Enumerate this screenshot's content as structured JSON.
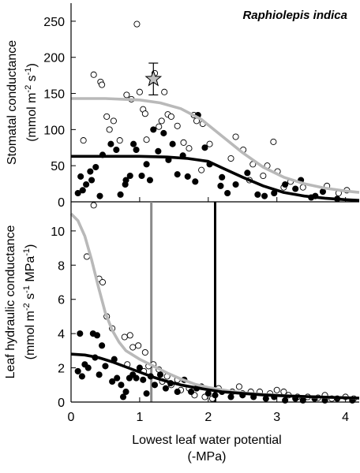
{
  "chart_data": [
    {
      "type": "scatter",
      "panel": "top",
      "species_label": "Raphiolepis indica",
      "ylabel_line1": "Stomatal conductance",
      "ylabel_line2": "(mmol m-2 s-1)",
      "ylabel_parts": [
        "(mmol m",
        "-2",
        " s",
        "-1",
        ")"
      ],
      "xlim": [
        0,
        4.2
      ],
      "ylim": [
        0,
        275
      ],
      "y_ticks": [
        0,
        50,
        100,
        150,
        200,
        250
      ],
      "grid": false,
      "series": [
        {
          "marker": "open-circle",
          "color": "#000000",
          "points": [
            [
              0.18,
              85
            ],
            [
              0.33,
              176
            ],
            [
              0.43,
              166
            ],
            [
              0.45,
              162
            ],
            [
              0.52,
              118
            ],
            [
              0.56,
              100
            ],
            [
              0.62,
              112
            ],
            [
              0.71,
              85
            ],
            [
              0.81,
              148
            ],
            [
              0.88,
              142
            ],
            [
              0.96,
              246
            ],
            [
              1.0,
              152
            ],
            [
              1.05,
              128
            ],
            [
              1.08,
              122
            ],
            [
              1.1,
              86
            ],
            [
              1.22,
              178
            ],
            [
              1.28,
              104
            ],
            [
              1.32,
              112
            ],
            [
              1.36,
              152
            ],
            [
              1.41,
              121
            ],
            [
              1.46,
              118
            ],
            [
              1.55,
              105
            ],
            [
              1.64,
              82
            ],
            [
              1.72,
              74
            ],
            [
              1.79,
              120
            ],
            [
              1.83,
              112
            ],
            [
              1.92,
              108
            ],
            [
              2.02,
              80
            ],
            [
              2.33,
              60
            ],
            [
              2.4,
              90
            ],
            [
              2.51,
              72
            ],
            [
              2.65,
              52
            ],
            [
              2.8,
              36
            ],
            [
              2.86,
              50
            ],
            [
              2.95,
              83
            ],
            [
              3.01,
              42
            ],
            [
              3.1,
              20
            ],
            [
              3.2,
              28
            ],
            [
              3.38,
              20
            ],
            [
              3.73,
              22
            ],
            [
              3.9,
              12
            ],
            [
              4.02,
              16
            ],
            [
              1.9,
              44
            ],
            [
              2.6,
              30
            ]
          ]
        },
        {
          "marker": "filled-circle",
          "color": "#000000",
          "points": [
            [
              0.1,
              12
            ],
            [
              0.14,
              35
            ],
            [
              0.17,
              16
            ],
            [
              0.22,
              24
            ],
            [
              0.28,
              42
            ],
            [
              0.3,
              30
            ],
            [
              0.36,
              48
            ],
            [
              0.42,
              8
            ],
            [
              0.46,
              65
            ],
            [
              0.58,
              80
            ],
            [
              0.66,
              72
            ],
            [
              0.72,
              10
            ],
            [
              0.79,
              24
            ],
            [
              0.8,
              30
            ],
            [
              0.86,
              36
            ],
            [
              0.91,
              80
            ],
            [
              0.95,
              72
            ],
            [
              1.03,
              36
            ],
            [
              1.1,
              52
            ],
            [
              1.15,
              30
            ],
            [
              1.27,
              70
            ],
            [
              1.35,
              95
            ],
            [
              1.42,
              58
            ],
            [
              1.48,
              80
            ],
            [
              1.55,
              38
            ],
            [
              1.63,
              64
            ],
            [
              1.7,
              35
            ],
            [
              1.81,
              28
            ],
            [
              1.85,
              120
            ],
            [
              1.95,
              75
            ],
            [
              2.02,
              52
            ],
            [
              2.18,
              22
            ],
            [
              2.28,
              12
            ],
            [
              2.4,
              24
            ],
            [
              2.57,
              40
            ],
            [
              2.72,
              10
            ],
            [
              2.82,
              8
            ],
            [
              2.96,
              12
            ],
            [
              3.12,
              24
            ],
            [
              3.27,
              18
            ],
            [
              3.35,
              30
            ],
            [
              3.5,
              6
            ],
            [
              3.56,
              8
            ],
            [
              3.67,
              14
            ],
            [
              3.88,
              4
            ],
            [
              2.2,
              34
            ],
            [
              1.2,
              100
            ]
          ]
        }
      ],
      "reference_point": {
        "marker": "star",
        "x": 1.2,
        "y": 170,
        "error": 22,
        "fill": "#bfbfbf"
      },
      "curves": [
        {
          "color": "#b9b9b9",
          "points": [
            [
              0,
              143
            ],
            [
              0.5,
              143
            ],
            [
              1,
              141
            ],
            [
              1.3,
              137
            ],
            [
              1.6,
              129
            ],
            [
              1.9,
              114
            ],
            [
              2.2,
              91
            ],
            [
              2.5,
              68
            ],
            [
              2.8,
              48
            ],
            [
              3.1,
              34
            ],
            [
              3.4,
              25
            ],
            [
              3.7,
              19
            ],
            [
              4,
              15
            ],
            [
              4.2,
              13
            ]
          ]
        },
        {
          "color": "#000000",
          "points": [
            [
              0,
              63
            ],
            [
              0.5,
              63
            ],
            [
              1,
              63
            ],
            [
              1.4,
              62
            ],
            [
              1.7,
              60
            ],
            [
              2,
              56
            ],
            [
              2.2,
              47
            ],
            [
              2.5,
              34
            ],
            [
              2.8,
              22
            ],
            [
              3.1,
              13
            ],
            [
              3.4,
              8
            ],
            [
              3.7,
              5
            ],
            [
              4,
              3
            ],
            [
              4.2,
              2
            ]
          ]
        }
      ]
    },
    {
      "type": "scatter",
      "panel": "bottom",
      "ylabel_line1": "Leaf hydraulic conductance",
      "ylabel_parts": [
        "(mmol m",
        "-2",
        " s",
        "-1",
        " MPa",
        "-1",
        ")"
      ],
      "xlabel_line1": "Lowest leaf water potential",
      "xlabel_line2": "(-MPa)",
      "xlim": [
        0,
        4.2
      ],
      "ylim": [
        0,
        11.7
      ],
      "x_ticks": [
        0,
        1,
        2,
        3,
        4
      ],
      "y_ticks": [
        0,
        2,
        4,
        6,
        8,
        10
      ],
      "grid": false,
      "vertical_lines": [
        {
          "x": 1.17,
          "color": "#8a8a8a"
        },
        {
          "x": 2.1,
          "color": "#000000"
        }
      ],
      "series": [
        {
          "marker": "open-circle",
          "color": "#000000",
          "points": [
            [
              0.23,
              8.5
            ],
            [
              0.33,
              11.5
            ],
            [
              0.41,
              7.2
            ],
            [
              0.46,
              7.0
            ],
            [
              0.52,
              5.0
            ],
            [
              0.6,
              4.3
            ],
            [
              0.78,
              3.8
            ],
            [
              0.82,
              2.2
            ],
            [
              0.86,
              3.9
            ],
            [
              0.9,
              3.2
            ],
            [
              0.98,
              3.3
            ],
            [
              1.06,
              1.8
            ],
            [
              1.08,
              2.9
            ],
            [
              1.13,
              2.1
            ],
            [
              1.2,
              2.2
            ],
            [
              1.28,
              1.9
            ],
            [
              1.33,
              1.2
            ],
            [
              1.4,
              1.5
            ],
            [
              1.46,
              1.0
            ],
            [
              1.55,
              1.3
            ],
            [
              1.6,
              0.7
            ],
            [
              1.72,
              0.8
            ],
            [
              1.8,
              0.4
            ],
            [
              1.95,
              0.3
            ],
            [
              2.06,
              0.2
            ],
            [
              2.15,
              0.8
            ],
            [
              2.35,
              0.6
            ],
            [
              2.5,
              0.5
            ],
            [
              2.62,
              0.6
            ],
            [
              2.75,
              0.6
            ],
            [
              2.9,
              0.5
            ],
            [
              3.0,
              0.7
            ],
            [
              3.1,
              0.6
            ],
            [
              3.17,
              0.4
            ],
            [
              3.3,
              0.3
            ],
            [
              3.45,
              0.3
            ],
            [
              3.6,
              0.25
            ],
            [
              3.7,
              0.4
            ],
            [
              3.8,
              0.2
            ],
            [
              4.0,
              0.3
            ],
            [
              4.12,
              0.2
            ],
            [
              2.45,
              0.9
            ]
          ]
        },
        {
          "marker": "filled-circle",
          "color": "#000000",
          "points": [
            [
              0.1,
              1.8
            ],
            [
              0.13,
              4.0
            ],
            [
              0.16,
              1.5
            ],
            [
              0.2,
              2.2
            ],
            [
              0.25,
              2.0
            ],
            [
              0.32,
              4.0
            ],
            [
              0.35,
              2.6
            ],
            [
              0.38,
              3.9
            ],
            [
              0.41,
              1.6
            ],
            [
              0.45,
              3.3
            ],
            [
              0.5,
              2.1
            ],
            [
              0.6,
              1.2
            ],
            [
              0.63,
              2.5
            ],
            [
              0.67,
              1.4
            ],
            [
              0.73,
              1.0
            ],
            [
              0.76,
              0.3
            ],
            [
              0.8,
              0.6
            ],
            [
              0.85,
              1.4
            ],
            [
              0.9,
              1.6
            ],
            [
              0.95,
              1.4
            ],
            [
              1.0,
              2.0
            ],
            [
              1.05,
              1.3
            ],
            [
              1.1,
              0.5
            ],
            [
              1.16,
              1.5
            ],
            [
              1.22,
              1.0
            ],
            [
              1.3,
              1.6
            ],
            [
              1.38,
              0.8
            ],
            [
              1.45,
              1.1
            ],
            [
              1.55,
              0.6
            ],
            [
              1.65,
              1.3
            ],
            [
              1.75,
              0.6
            ],
            [
              1.83,
              0.8
            ],
            [
              1.9,
              0.9
            ],
            [
              2.0,
              0.5
            ],
            [
              2.1,
              0.4
            ],
            [
              2.2,
              0.6
            ],
            [
              2.33,
              0.3
            ],
            [
              2.5,
              0.4
            ],
            [
              2.66,
              0.3
            ],
            [
              2.84,
              0.2
            ],
            [
              2.96,
              0.3
            ],
            [
              3.12,
              0.1
            ],
            [
              3.27,
              0.2
            ],
            [
              3.38,
              0.1
            ],
            [
              3.55,
              0.2
            ],
            [
              3.7,
              0.1
            ],
            [
              3.88,
              0.2
            ],
            [
              4.1,
              0.1
            ]
          ]
        }
      ],
      "curves": [
        {
          "color": "#b9b9b9",
          "points": [
            [
              0,
              11
            ],
            [
              0.1,
              10.6
            ],
            [
              0.2,
              9.7
            ],
            [
              0.3,
              8.3
            ],
            [
              0.4,
              6.7
            ],
            [
              0.5,
              5.2
            ],
            [
              0.6,
              4.2
            ],
            [
              0.7,
              3.5
            ],
            [
              0.8,
              3.0
            ],
            [
              1,
              2.5
            ],
            [
              1.2,
              2.1
            ],
            [
              1.4,
              1.7
            ],
            [
              1.6,
              1.35
            ],
            [
              1.8,
              1.05
            ],
            [
              2,
              0.85
            ],
            [
              2.3,
              0.65
            ],
            [
              2.6,
              0.5
            ],
            [
              3,
              0.4
            ],
            [
              3.5,
              0.3
            ],
            [
              4,
              0.25
            ],
            [
              4.2,
              0.22
            ]
          ]
        },
        {
          "color": "#000000",
          "points": [
            [
              0,
              2.8
            ],
            [
              0.2,
              2.75
            ],
            [
              0.4,
              2.6
            ],
            [
              0.6,
              2.35
            ],
            [
              0.8,
              2.05
            ],
            [
              1,
              1.75
            ],
            [
              1.2,
              1.45
            ],
            [
              1.4,
              1.2
            ],
            [
              1.6,
              1.0
            ],
            [
              1.8,
              0.85
            ],
            [
              2,
              0.72
            ],
            [
              2.2,
              0.6
            ],
            [
              2.5,
              0.5
            ],
            [
              2.8,
              0.42
            ],
            [
              3.2,
              0.35
            ],
            [
              3.6,
              0.3
            ],
            [
              4,
              0.25
            ],
            [
              4.2,
              0.23
            ]
          ]
        }
      ]
    }
  ]
}
